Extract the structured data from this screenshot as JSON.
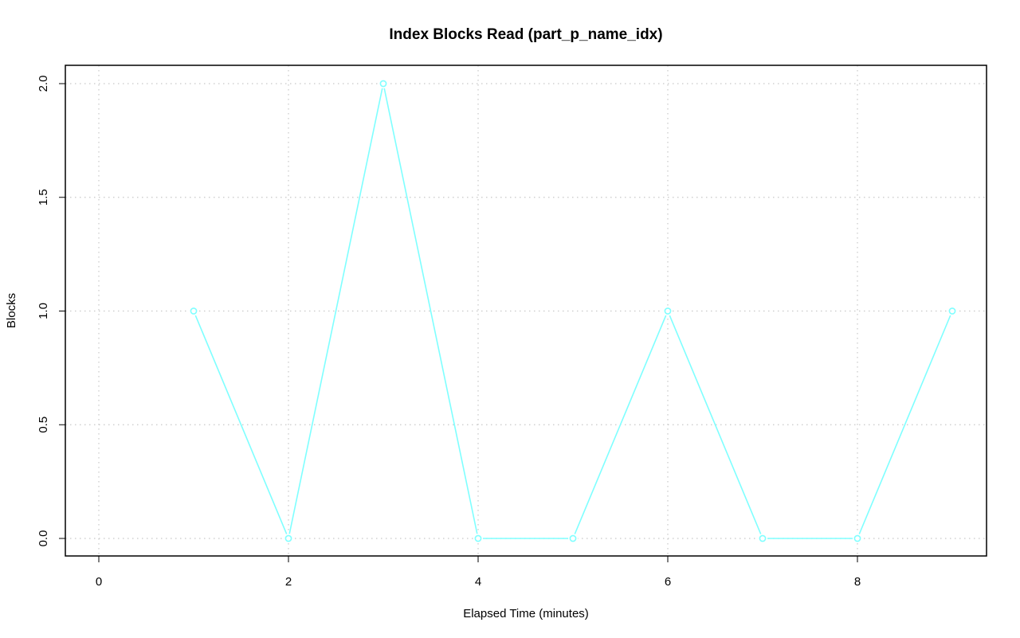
{
  "chart_data": {
    "type": "line",
    "title": "Index Blocks Read (part_p_name_idx)",
    "xlabel": "Elapsed Time (minutes)",
    "ylabel": "Blocks",
    "xlim": [
      0,
      9
    ],
    "ylim": [
      0,
      2
    ],
    "x_ticks": [
      0,
      2,
      4,
      6,
      8
    ],
    "x_tick_labels": [
      "0",
      "2",
      "4",
      "6",
      "8"
    ],
    "y_ticks": [
      0,
      0.5,
      1,
      1.5,
      2
    ],
    "y_tick_labels": [
      "0.0",
      "0.5",
      "1.0",
      "1.5",
      "2.0"
    ],
    "grid": true,
    "series": [
      {
        "color": "#7fffff",
        "marker": "open-circle",
        "x": [
          1,
          2,
          3,
          4,
          5,
          6,
          7,
          8,
          9
        ],
        "y": [
          1,
          0,
          2,
          0,
          0,
          1,
          0,
          0,
          1
        ]
      }
    ]
  }
}
